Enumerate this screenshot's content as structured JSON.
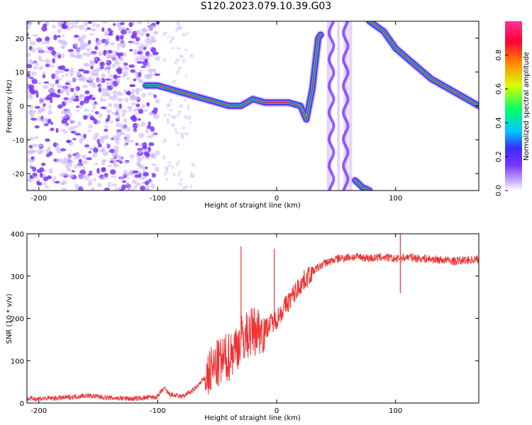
{
  "title": "S120.2023.079.10.39.G03",
  "colorbar": {
    "label": "Normalized spectral amplitude",
    "ticks": [
      "0.0",
      "0.2",
      "0.4",
      "0.6",
      "0.8"
    ]
  },
  "chart_data": [
    {
      "type": "heatmap",
      "xlabel": "Height of straight line (km)",
      "ylabel": "Frequency (Hz)",
      "xlim": [
        -210,
        170
      ],
      "ylim": [
        -25,
        25
      ],
      "xticks": [
        "-200",
        "-100",
        "0",
        "100"
      ],
      "yticks": [
        "20",
        "10",
        "0",
        "-10",
        "-20"
      ],
      "noise_region_x": [
        -210,
        -100
      ],
      "ridge": [
        {
          "x": -110,
          "y": 6
        },
        {
          "x": -100,
          "y": 6
        },
        {
          "x": -90,
          "y": 5
        },
        {
          "x": -80,
          "y": 4
        },
        {
          "x": -70,
          "y": 3
        },
        {
          "x": -60,
          "y": 2
        },
        {
          "x": -50,
          "y": 1
        },
        {
          "x": -40,
          "y": 0
        },
        {
          "x": -30,
          "y": 0
        },
        {
          "x": -20,
          "y": 2
        },
        {
          "x": -10,
          "y": 1
        },
        {
          "x": 0,
          "y": 1
        },
        {
          "x": 10,
          "y": 1
        },
        {
          "x": 20,
          "y": 0
        },
        {
          "x": 25,
          "y": -4
        },
        {
          "x": 30,
          "y": 5
        },
        {
          "x": 35,
          "y": 20
        },
        {
          "x": 37,
          "y": 21
        }
      ],
      "chirp_upper": [
        {
          "x": 78,
          "y": 25
        },
        {
          "x": 90,
          "y": 22
        },
        {
          "x": 100,
          "y": 17
        },
        {
          "x": 110,
          "y": 14
        },
        {
          "x": 120,
          "y": 11
        },
        {
          "x": 130,
          "y": 8
        },
        {
          "x": 140,
          "y": 6
        },
        {
          "x": 150,
          "y": 4
        },
        {
          "x": 160,
          "y": 2
        },
        {
          "x": 170,
          "y": 0
        }
      ],
      "chirp_lower": [
        {
          "x": 66,
          "y": -22
        },
        {
          "x": 72,
          "y": -24
        },
        {
          "x": 78,
          "y": -25
        }
      ],
      "colors": [
        "#ffffff",
        "#c9b6ff",
        "#7a33ff",
        "#3b2bff",
        "#00c7ff",
        "#00ff66",
        "#d9ff00",
        "#ff8c00",
        "#ff0033",
        "#ff3399"
      ]
    },
    {
      "type": "line",
      "xlabel": "Height of straight line (km)",
      "ylabel": "SNR (10 * v/v)",
      "xlim": [
        -210,
        170
      ],
      "ylim": [
        0,
        400
      ],
      "xticks": [
        "-200",
        "-100",
        "0",
        "100"
      ],
      "yticks": [
        "0",
        "100",
        "200",
        "300",
        "400"
      ],
      "color": "#ee3333",
      "series": [
        {
          "x": [
            -210,
            -180,
            -160,
            -140,
            -120,
            -100,
            -95,
            -90,
            -80,
            -70,
            -60,
            -50,
            -40,
            -30,
            -20,
            -10,
            0,
            10,
            20,
            30,
            40,
            50,
            60,
            70,
            80,
            90,
            100,
            110,
            120,
            130,
            140,
            150,
            160,
            170
          ],
          "values": [
            10,
            12,
            18,
            12,
            10,
            15,
            35,
            20,
            15,
            30,
            60,
            90,
            110,
            150,
            170,
            175,
            200,
            240,
            280,
            310,
            330,
            340,
            345,
            345,
            342,
            345,
            340,
            345,
            342,
            340,
            338,
            335,
            338,
            340
          ]
        }
      ],
      "spikes": [
        {
          "x": -30,
          "y": 370
        },
        {
          "x": -2,
          "y": 365
        },
        {
          "x": 104,
          "y": 400
        },
        {
          "x": 104,
          "y": 260
        }
      ]
    }
  ]
}
